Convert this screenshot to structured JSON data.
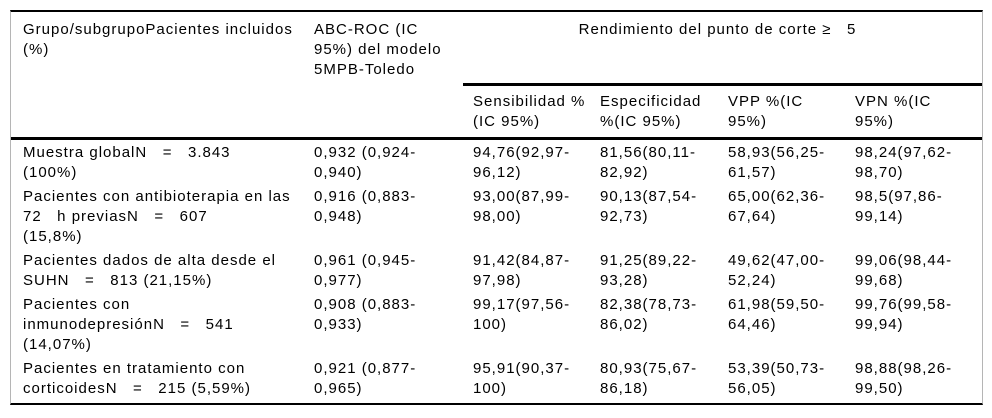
{
  "table": {
    "header": {
      "grupo": "Grupo/subgrupoPacientes incluidos\n(%)",
      "abc_roc": "ABC-ROC (IC\n95%) del modelo\n5MPB-Toledo",
      "group_title": "Rendimiento del punto de corte ≥   5",
      "sub": [
        "Sensibilidad %\n(IC 95%)",
        "Especificidad\n%(IC 95%)",
        "VPP %(IC\n95%)",
        "VPN %(IC\n95%)"
      ]
    },
    "rows": [
      {
        "grupo": "Muestra globalN   =   3.843\n(100%)",
        "abc_roc": "0,932 (0,924-\n0,940)",
        "sensibilidad": "94,76(92,97-\n96,12)",
        "especificidad": "81,56(80,11-\n82,92)",
        "vpp": "58,93(56,25-\n61,57)",
        "vpn": "98,24(97,62-\n98,70)"
      },
      {
        "grupo": "Pacientes con antibioterapia en las\n72   h previasN   =   607\n(15,8%)",
        "abc_roc": "0,916 (0,883-\n0,948)",
        "sensibilidad": "93,00(87,99-\n98,00)",
        "especificidad": "90,13(87,54-\n92,73)",
        "vpp": "65,00(62,36-\n67,64)",
        "vpn": "98,5(97,86-\n99,14)"
      },
      {
        "grupo": "Pacientes dados de alta desde el\nSUHN   =   813 (21,15%)",
        "abc_roc": "0,961 (0,945-\n0,977)",
        "sensibilidad": "91,42(84,87-\n97,98)",
        "especificidad": "91,25(89,22-\n93,28)",
        "vpp": "49,62(47,00-\n52,24)",
        "vpn": "99,06(98,44-\n99,68)"
      },
      {
        "grupo": "Pacientes con\ninmunodepresiónN   =   541\n(14,07%)",
        "abc_roc": "0,908 (0,883-\n0,933)",
        "sensibilidad": "99,17(97,56-\n100)",
        "especificidad": "82,38(78,73-\n86,02)",
        "vpp": "61,98(59,50-\n64,46)",
        "vpn": "99,76(99,58-\n99,94)"
      },
      {
        "grupo": "Pacientes en tratamiento con\ncorticoidesN   =   215 (5,59%)",
        "abc_roc": "0,921 (0,877-\n0,965)",
        "sensibilidad": "95,91(90,37-\n100)",
        "especificidad": "80,93(75,67-\n86,18)",
        "vpp": "53,39(50,73-\n56,05)",
        "vpn": "98,88(98,26-\n99,50)"
      }
    ]
  },
  "colors": {
    "rule": "#000000",
    "side_border": "#b5b5b5",
    "text": "#000000",
    "background": "#ffffff"
  }
}
